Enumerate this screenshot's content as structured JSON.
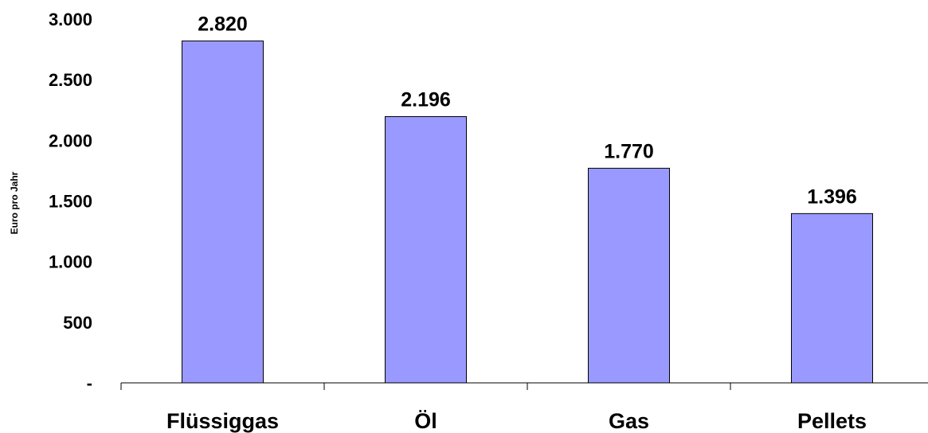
{
  "chart_data": {
    "type": "bar",
    "categories": [
      "Flüssiggas",
      "Öl",
      "Gas",
      "Pellets"
    ],
    "values": [
      2820,
      2196,
      1770,
      1396
    ],
    "data_labels": [
      "2.820",
      "2.196",
      "1.770",
      "1.396"
    ],
    "title": "",
    "xlabel": "",
    "ylabel": "Euro pro Jahr",
    "ylim": [
      0,
      3000
    ],
    "yticks": [
      0,
      500,
      1000,
      1500,
      2000,
      2500,
      3000
    ],
    "ytick_labels": [
      "-",
      "500",
      "1.000",
      "1.500",
      "2.000",
      "2.500",
      "3.000"
    ],
    "grid": false,
    "legend": "none",
    "colors": {
      "bar_fill": "#9999FF",
      "bar_stroke": "#000000",
      "axis": "#000000"
    }
  }
}
